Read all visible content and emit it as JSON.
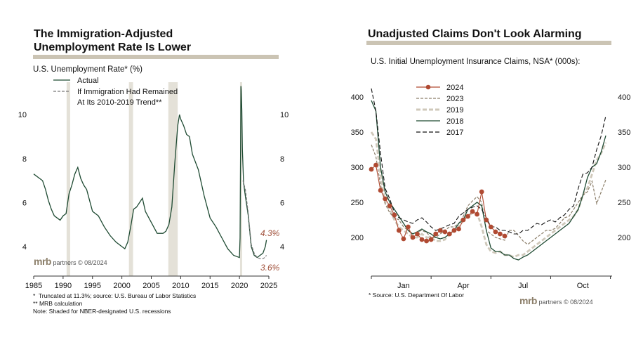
{
  "left": {
    "title_line1": "The Immigration-Adjusted",
    "title_line2": "Unemployment Rate Is Lower",
    "subtitle": "U.S. Unemployment Rate* (%)",
    "legend_actual": "Actual",
    "legend_trend_1": "If Immigration Had Remained",
    "legend_trend_2": "At Its 2010-2019 Trend**",
    "annotation_high": "4.3%",
    "annotation_low": "3.6%",
    "brand_logo": "mrb",
    "brand_text": "partners © 08/2024",
    "footnote_1": "*  Truncated at 11.3%; source: U.S. Bureau of Labor Statistics",
    "footnote_2": "** MRB calculation",
    "footnote_3": "Note: Shaded for NBER-designated U.S. recessions"
  },
  "right": {
    "title": "Unadjusted Claims Don't Look Alarming",
    "subtitle": "U.S. Initial Unemployment Insurance Claims, NSA* (000s):",
    "source": "* Source: U.S. Department Of Labor",
    "brand_logo": "mrb",
    "brand_text": "partners © 08/2024"
  },
  "colors": {
    "actual": "#1e4a32",
    "trend": "#777777",
    "annotation": "#a0503a",
    "recession": "#e4e1d8",
    "rule": "#cbc4b4",
    "s2024": "#b04a32",
    "s2023": "#8c7f6a",
    "s2019": "#cfc8ba",
    "s2018": "#1e4a32",
    "s2017": "#111111"
  },
  "chart_data": [
    {
      "type": "line",
      "xlim": [
        1985,
        2025
      ],
      "ylim": [
        3,
        11.3
      ],
      "xticks": [
        "1985",
        "1990",
        "1995",
        "2000",
        "2005",
        "2010",
        "2015",
        "2020",
        "2025"
      ],
      "yticks": [
        "4",
        "6",
        "8",
        "10"
      ],
      "recessions": [
        [
          1990.6,
          1991.2
        ],
        [
          2001.2,
          2001.9
        ],
        [
          2007.9,
          2009.5
        ],
        [
          2020.1,
          2020.3
        ]
      ],
      "series": [
        {
          "name": "Actual",
          "x": [
            1985,
            1986,
            1986.5,
            1987,
            1987.5,
            1988,
            1988.5,
            1989,
            1989.5,
            1990,
            1990.5,
            1991,
            1991.5,
            1992,
            1992.5,
            1993,
            1993.5,
            1994,
            1994.5,
            1995,
            1996,
            1997,
            1998,
            1999,
            2000,
            2000.5,
            2001,
            2001.5,
            2002,
            2002.5,
            2003,
            2003.5,
            2004,
            2005,
            2006,
            2007,
            2007.5,
            2008,
            2008.5,
            2009,
            2009.5,
            2009.8,
            2010,
            2010.5,
            2011,
            2011.5,
            2012,
            2013,
            2014,
            2015,
            2016,
            2017,
            2018,
            2019,
            2020,
            2020.1,
            2020.25,
            2020.3,
            2020.4,
            2020.5,
            2020.7,
            2021,
            2021.5,
            2022,
            2022.5,
            2023,
            2023.5,
            2024,
            2024.4,
            2024.6
          ],
          "y": [
            7.3,
            7.1,
            7.0,
            6.6,
            6.1,
            5.7,
            5.4,
            5.3,
            5.2,
            5.4,
            5.5,
            6.4,
            6.8,
            7.3,
            7.6,
            7.1,
            6.8,
            6.6,
            6.1,
            5.6,
            5.4,
            4.9,
            4.5,
            4.2,
            4.0,
            3.9,
            4.2,
            4.9,
            5.7,
            5.8,
            6.0,
            6.2,
            5.6,
            5.1,
            4.6,
            4.6,
            4.7,
            5.0,
            5.8,
            7.8,
            9.5,
            10.0,
            9.8,
            9.5,
            9.1,
            9.0,
            8.2,
            7.5,
            6.3,
            5.3,
            4.9,
            4.4,
            3.9,
            3.6,
            3.5,
            4.4,
            11.3,
            11.1,
            10.2,
            8.4,
            6.9,
            6.3,
            5.4,
            4.0,
            3.6,
            3.5,
            3.6,
            3.7,
            4.0,
            4.3
          ]
        },
        {
          "name": "If Immigration Had Remained At Its 2010-2019 Trend",
          "x": [
            2020.6,
            2021,
            2021.5,
            2022,
            2022.5,
            2023,
            2023.5,
            2024,
            2024.3,
            2024.6
          ],
          "y": [
            7.0,
            6.6,
            5.5,
            4.1,
            3.7,
            3.5,
            3.45,
            3.45,
            3.5,
            3.6
          ]
        }
      ],
      "annotations": [
        "4.3%",
        "3.6%"
      ]
    },
    {
      "type": "line",
      "xlim": [
        0,
        52
      ],
      "ylim": [
        155,
        420
      ],
      "xticks": [
        "Jan",
        "Apr",
        "Jul",
        "Oct"
      ],
      "yticks": [
        "200",
        "250",
        "300",
        "350",
        "400"
      ],
      "series": [
        {
          "name": "2024",
          "values": [
            297,
            303,
            267,
            255,
            245,
            232,
            210,
            198,
            215,
            200,
            205,
            197,
            195,
            197,
            205,
            210,
            208,
            205,
            210,
            212,
            225,
            230,
            237,
            233,
            265,
            225,
            215,
            208,
            205,
            202
          ]
        },
        {
          "name": "2023",
          "values": [
            332,
            315,
            275,
            248,
            235,
            228,
            225,
            215,
            210,
            205,
            208,
            210,
            207,
            200,
            200,
            205,
            210,
            215,
            215,
            220,
            230,
            245,
            252,
            258,
            250,
            210,
            205,
            200,
            198,
            196,
            210,
            210,
            203,
            195,
            190,
            195,
            200,
            205,
            210,
            210,
            213,
            220,
            228,
            230,
            240,
            250,
            260,
            265,
            280,
            248,
            265,
            282
          ]
        },
        {
          "name": "2019",
          "values": [
            350,
            340,
            290,
            250,
            240,
            225,
            215,
            210,
            205,
            200,
            200,
            205,
            200,
            200,
            195,
            195,
            197,
            205,
            210,
            215,
            225,
            230,
            235,
            235,
            215,
            190,
            180,
            178,
            180,
            175,
            175,
            172,
            175,
            175,
            180,
            185,
            190,
            195,
            200,
            205,
            210,
            215,
            220,
            225,
            230,
            240,
            260,
            270,
            290,
            310,
            320,
            335
          ]
        },
        {
          "name": "2018",
          "values": [
            395,
            380,
            300,
            265,
            250,
            240,
            230,
            220,
            210,
            205,
            208,
            212,
            208,
            205,
            200,
            198,
            200,
            205,
            210,
            220,
            225,
            240,
            245,
            250,
            245,
            210,
            185,
            180,
            180,
            175,
            175,
            170,
            168,
            172,
            175,
            180,
            185,
            190,
            195,
            200,
            205,
            210,
            215,
            220,
            230,
            240,
            260,
            285,
            300,
            305,
            322,
            345
          ]
        },
        {
          "name": "2017",
          "values": [
            412,
            380,
            320,
            270,
            255,
            235,
            228,
            225,
            222,
            220,
            225,
            228,
            222,
            215,
            210,
            212,
            215,
            218,
            220,
            230,
            235,
            240,
            243,
            245,
            240,
            228,
            215,
            215,
            210,
            210,
            208,
            205,
            205,
            210,
            210,
            215,
            220,
            218,
            222,
            225,
            222,
            228,
            232,
            240,
            245,
            270,
            290,
            292,
            300,
            325,
            345,
            373
          ]
        }
      ]
    }
  ]
}
